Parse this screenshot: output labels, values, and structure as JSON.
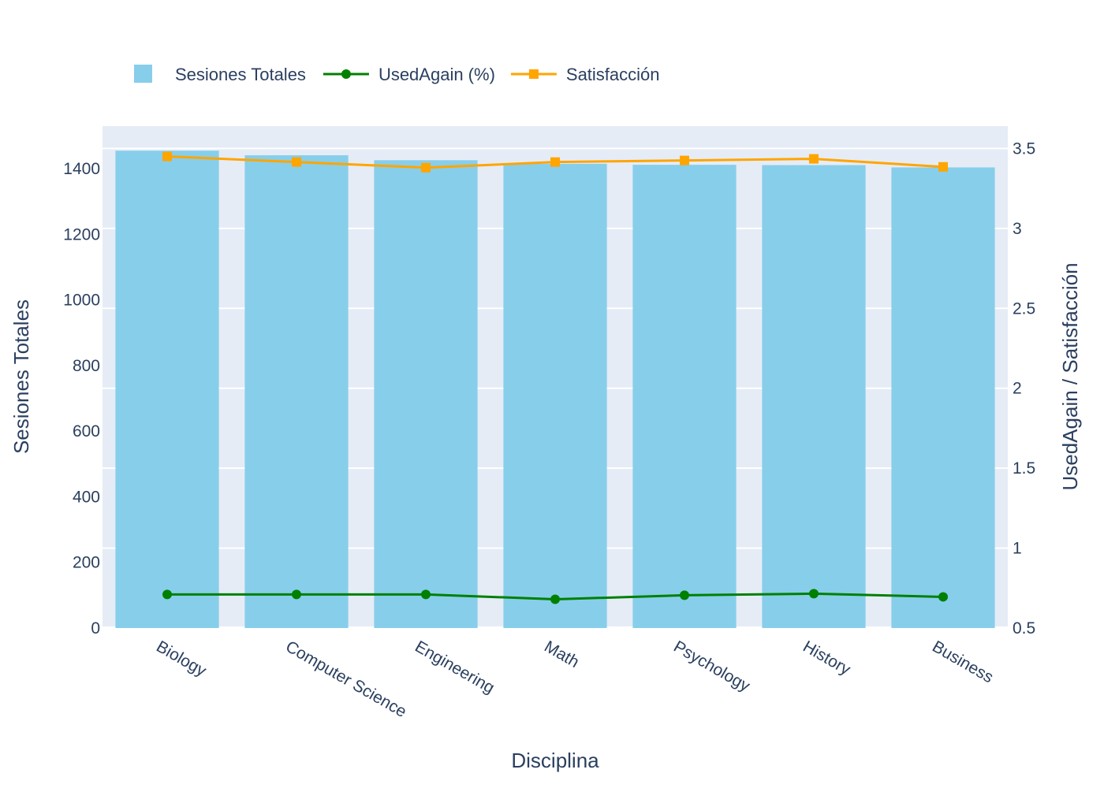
{
  "chart_data": {
    "type": "bar",
    "categories": [
      "Biology",
      "Computer Science",
      "Engineering",
      "Math",
      "Psychology",
      "History",
      "Business"
    ],
    "series": [
      {
        "name": "Sesiones Totales",
        "type": "bar",
        "axis": "left",
        "color": "#87CEEB",
        "values": [
          1455,
          1441,
          1426,
          1415,
          1412,
          1411,
          1404
        ]
      },
      {
        "name": "UsedAgain (%)",
        "type": "line",
        "axis": "right",
        "color": "#008000",
        "marker": "circle",
        "values": [
          0.71,
          0.71,
          0.71,
          0.68,
          0.705,
          0.715,
          0.695
        ]
      },
      {
        "name": "Satisfacción",
        "type": "line",
        "axis": "right",
        "color": "#FFA500",
        "marker": "square",
        "values": [
          3.45,
          3.415,
          3.38,
          3.415,
          3.425,
          3.435,
          3.385
        ]
      }
    ],
    "xlabel": "Disciplina",
    "ylabel": "Sesiones Totales",
    "y2label": "UsedAgain / Satisfacción",
    "ylim": [
      0,
      1530
    ],
    "y2lim": [
      0.5,
      3.64
    ],
    "yticks": [
      0,
      200,
      400,
      600,
      800,
      1000,
      1200,
      1400
    ],
    "y2ticks": [
      "0.5",
      "1",
      "1.5",
      "2",
      "2.5",
      "3",
      "3.5"
    ],
    "grid": true,
    "legend_position": "top-left",
    "plot_background": "#E5ECF6"
  }
}
